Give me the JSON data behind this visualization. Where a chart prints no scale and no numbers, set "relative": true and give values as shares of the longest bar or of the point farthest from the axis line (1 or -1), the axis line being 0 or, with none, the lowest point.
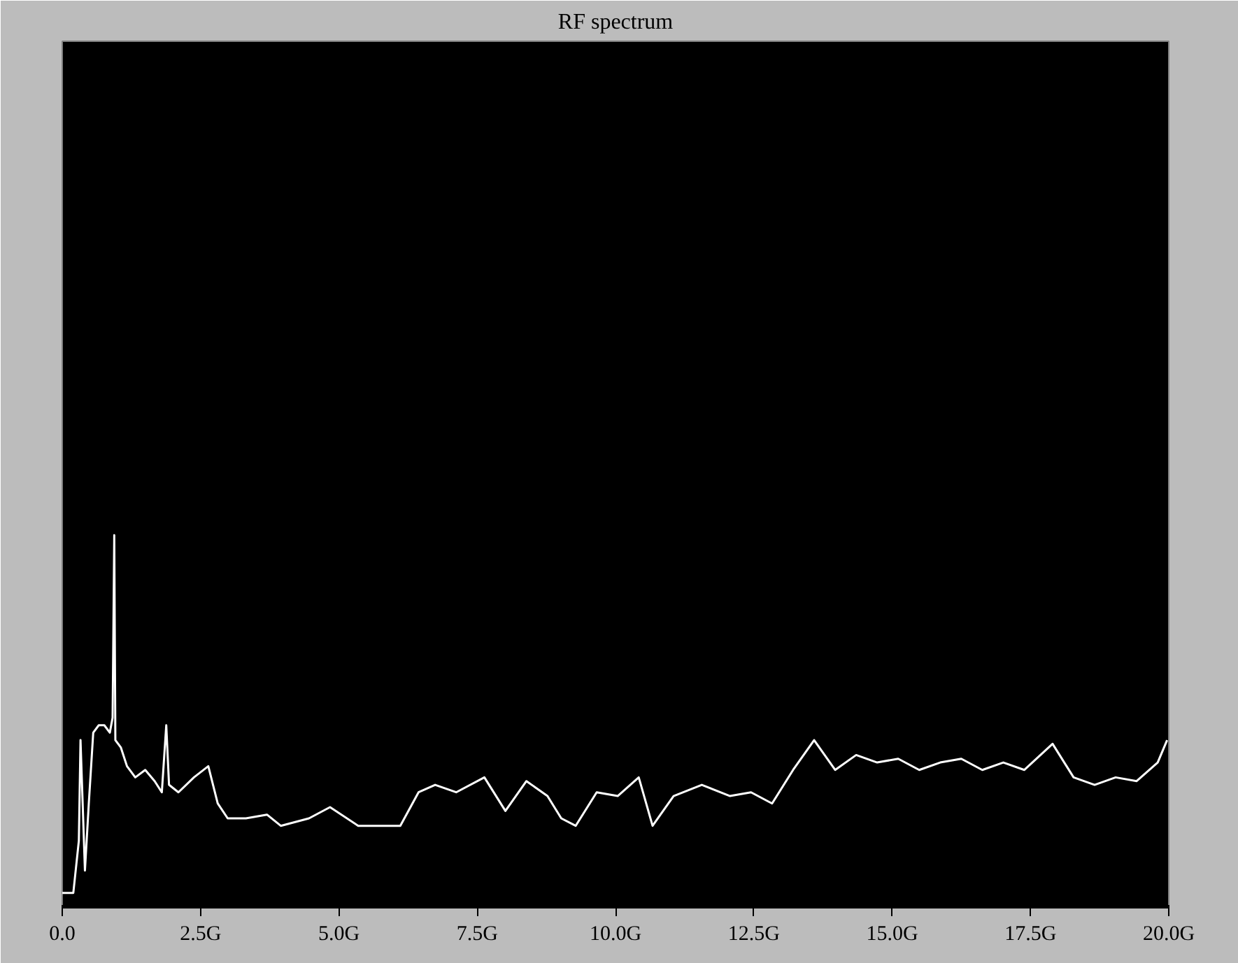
{
  "chart_data": {
    "type": "line",
    "title": "RF spectrum",
    "relative": true,
    "color": "#ffffff",
    "x": [
      0.0,
      0.2,
      0.3,
      0.33,
      0.41,
      0.48,
      0.56,
      0.66,
      0.76,
      0.86,
      0.91,
      0.94,
      0.96,
      1.06,
      1.17,
      1.32,
      1.5,
      1.67,
      1.8,
      1.88,
      1.93,
      2.1,
      2.38,
      2.64,
      2.81,
      2.99,
      3.32,
      3.7,
      3.95,
      4.46,
      4.84,
      5.35,
      5.73,
      6.11,
      6.44,
      6.74,
      7.12,
      7.63,
      8.01,
      8.39,
      8.77,
      9.02,
      9.28,
      9.66,
      10.04,
      10.42,
      10.67,
      11.05,
      11.56,
      12.07,
      12.45,
      12.83,
      13.21,
      13.59,
      13.97,
      14.35,
      14.73,
      15.11,
      15.49,
      15.87,
      16.25,
      16.63,
      17.01,
      17.39,
      17.9,
      18.28,
      18.66,
      19.04,
      19.42,
      19.8,
      19.97
    ],
    "values": [
      0.04,
      0.04,
      0.18,
      0.45,
      0.1,
      0.28,
      0.47,
      0.49,
      0.49,
      0.47,
      0.51,
      1.0,
      0.45,
      0.43,
      0.38,
      0.35,
      0.37,
      0.34,
      0.31,
      0.49,
      0.33,
      0.31,
      0.35,
      0.38,
      0.28,
      0.24,
      0.24,
      0.25,
      0.22,
      0.24,
      0.27,
      0.22,
      0.22,
      0.22,
      0.31,
      0.33,
      0.31,
      0.35,
      0.26,
      0.34,
      0.3,
      0.24,
      0.22,
      0.31,
      0.3,
      0.35,
      0.22,
      0.3,
      0.33,
      0.3,
      0.31,
      0.28,
      0.37,
      0.45,
      0.37,
      0.41,
      0.39,
      0.4,
      0.37,
      0.39,
      0.4,
      0.37,
      0.39,
      0.37,
      0.44,
      0.35,
      0.33,
      0.35,
      0.34,
      0.39,
      0.45
    ],
    "xlim": [
      0,
      20
    ],
    "xticks": [
      {
        "value": 0,
        "label": "0.0"
      },
      {
        "value": 2.5,
        "label": "2.5G"
      },
      {
        "value": 5,
        "label": "5.0G"
      },
      {
        "value": 7.5,
        "label": "7.5G"
      },
      {
        "value": 10,
        "label": "10.0G"
      },
      {
        "value": 12.5,
        "label": "12.5G"
      },
      {
        "value": 15,
        "label": "15.0G"
      },
      {
        "value": 17.5,
        "label": "17.5G"
      },
      {
        "value": 20,
        "label": "20.0G"
      }
    ],
    "grid": false
  }
}
